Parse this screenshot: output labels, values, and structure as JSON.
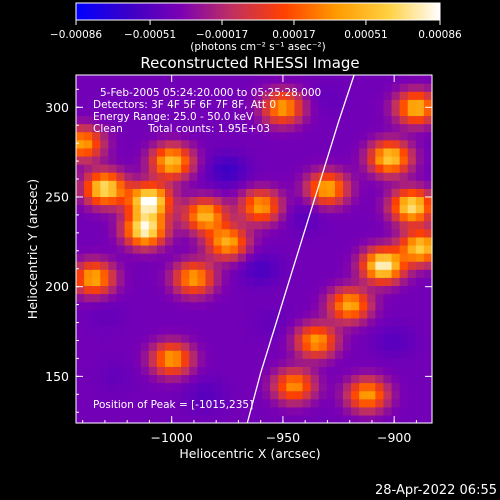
{
  "chart_data": {
    "type": "heatmap",
    "title": "Reconstructed RHESSI Image",
    "xlabel": "Heliocentric X (arcsec)",
    "ylabel": "Heliocentric Y (arcsec)",
    "xlim": [
      -1043,
      -883
    ],
    "ylim": [
      124,
      318
    ],
    "x_ticks": [
      -1000,
      -950,
      -900
    ],
    "x_tick_labels": [
      "−1000",
      "−950",
      "−900"
    ],
    "y_ticks": [
      150,
      200,
      250,
      300
    ],
    "y_tick_labels": [
      "150",
      "200",
      "250",
      "300"
    ],
    "colorbar": {
      "range": [
        -0.00086,
        0.00086
      ],
      "ticks": [
        -0.00086,
        -0.00051,
        -0.00017,
        0.00017,
        0.00051,
        0.00086
      ],
      "tick_labels": [
        "−0.00086",
        "−0.00051",
        "−0.00017",
        "0.00017",
        "0.00051",
        "0.00086"
      ],
      "unit_label": "(photons cm⁻² s⁻¹ asec⁻²)",
      "colors": [
        "#0000ff",
        "#3a00c8",
        "#7a00b4",
        "#c03060",
        "#ff4000",
        "#ff9a00",
        "#ffd040",
        "#ffffff"
      ]
    },
    "annotations": {
      "time_range": "5-Feb-2005 05:24:20.000 to 05:25:28.000",
      "detectors": "Detectors: 3F 4F 5F 6F 7F 8F, Att 0",
      "energy": "Energy Range: 25.0 - 50.0 keV",
      "method": "Clean",
      "counts": "Total counts: 1.95E+03",
      "peak": "Position of Peak = [-1015,235]"
    },
    "limb_curve": {
      "x": [
        -966,
        -960,
        -953,
        -946,
        -939,
        -932,
        -925,
        -918
      ],
      "y": [
        124,
        152,
        180,
        208,
        236,
        264,
        292,
        318
      ]
    },
    "bright_regions": [
      {
        "x": -1030,
        "y": 255,
        "intensity": 0.0007
      },
      {
        "x": -1010,
        "y": 248,
        "intensity": 0.00086
      },
      {
        "x": -1012,
        "y": 232,
        "intensity": 0.0008
      },
      {
        "x": -1000,
        "y": 270,
        "intensity": 0.00055
      },
      {
        "x": -985,
        "y": 240,
        "intensity": 0.0005
      },
      {
        "x": -975,
        "y": 225,
        "intensity": 0.00045
      },
      {
        "x": -990,
        "y": 205,
        "intensity": 0.0004
      },
      {
        "x": -1035,
        "y": 205,
        "intensity": 0.00045
      },
      {
        "x": -1040,
        "y": 280,
        "intensity": 0.0004
      },
      {
        "x": -960,
        "y": 245,
        "intensity": 0.0004
      },
      {
        "x": -930,
        "y": 255,
        "intensity": 0.00045
      },
      {
        "x": -902,
        "y": 272,
        "intensity": 0.0006
      },
      {
        "x": -892,
        "y": 245,
        "intensity": 0.0007
      },
      {
        "x": -905,
        "y": 212,
        "intensity": 0.0008
      },
      {
        "x": -888,
        "y": 222,
        "intensity": 0.0006
      },
      {
        "x": -920,
        "y": 190,
        "intensity": 0.00045
      },
      {
        "x": -935,
        "y": 170,
        "intensity": 0.0004
      },
      {
        "x": -1000,
        "y": 160,
        "intensity": 0.0004
      },
      {
        "x": -945,
        "y": 145,
        "intensity": 0.00035
      },
      {
        "x": -912,
        "y": 140,
        "intensity": 0.0004
      },
      {
        "x": -890,
        "y": 300,
        "intensity": 0.0005
      },
      {
        "x": -950,
        "y": 300,
        "intensity": 0.0004
      }
    ],
    "dark_regions": [
      {
        "x": -975,
        "y": 265,
        "intensity": -0.0006
      },
      {
        "x": -960,
        "y": 210,
        "intensity": -0.00055
      },
      {
        "x": -940,
        "y": 240,
        "intensity": -0.0005
      },
      {
        "x": -1025,
        "y": 150,
        "intensity": -0.00045
      },
      {
        "x": -985,
        "y": 140,
        "intensity": -0.0005
      },
      {
        "x": -1030,
        "y": 185,
        "intensity": -0.00045
      },
      {
        "x": -900,
        "y": 170,
        "intensity": -0.0005
      },
      {
        "x": -888,
        "y": 190,
        "intensity": -0.0004
      },
      {
        "x": -930,
        "y": 305,
        "intensity": -0.00045
      },
      {
        "x": -1015,
        "y": 305,
        "intensity": -0.0004
      },
      {
        "x": -955,
        "y": 180,
        "intensity": -0.00045
      }
    ]
  },
  "footer": {
    "timestamp": "28-Apr-2022 06:55"
  }
}
